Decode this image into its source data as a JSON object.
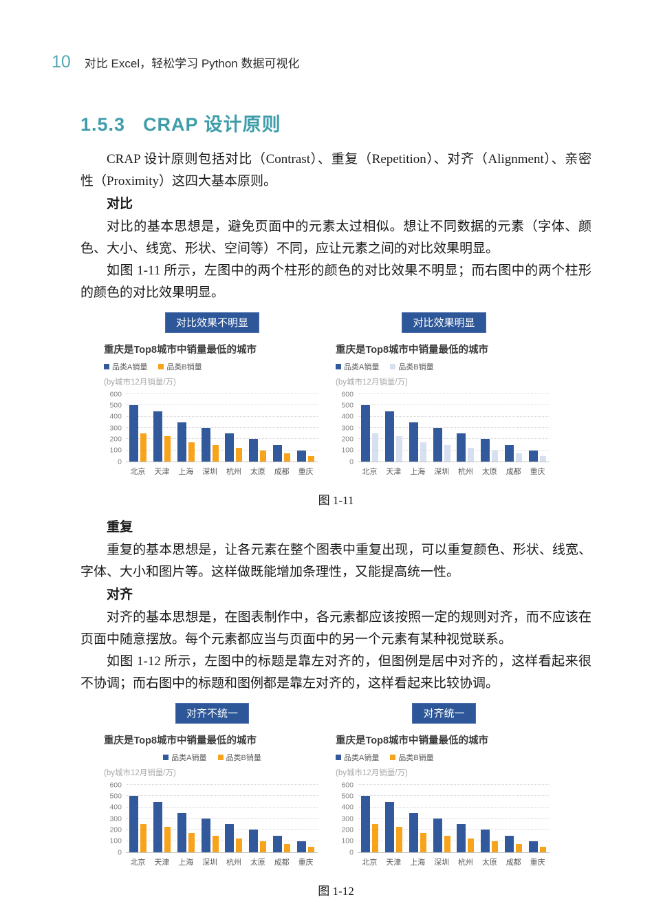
{
  "page": {
    "page_number": "10",
    "header_title": "对比 Excel，轻松学习 Python 数据可视化"
  },
  "section": {
    "number": "1.5.3",
    "title": "CRAP 设计原则"
  },
  "paragraphs": {
    "intro": "CRAP 设计原则包括对比（Contrast）、重复（Repetition）、对齐（Alignment）、亲密性（Proximity）这四大基本原则。",
    "contrast_head": "对比",
    "contrast_p1": "对比的基本思想是，避免页面中的元素太过相似。想让不同数据的元素（字体、颜色、大小、线宽、形状、空间等）不同，应让元素之间的对比效果明显。",
    "contrast_p2": "如图 1-11 所示，左图中的两个柱形的颜色的对比效果不明显；而右图中的两个柱形的颜色的对比效果明显。",
    "fig11_caption": "图 1-11",
    "repeat_head": "重复",
    "repeat_p1": "重复的基本思想是，让各元素在整个图表中重复出现，可以重复颜色、形状、线宽、字体、大小和图片等。这样做既能增加条理性，又能提高统一性。",
    "align_head": "对齐",
    "align_p1": "对齐的基本思想是，在图表制作中，各元素都应该按照一定的规则对齐，而不应该在页面中随意摆放。每个元素都应当与页面中的另一个元素有某种视觉联系。",
    "align_p2": "如图 1-12 所示，左图中的标题是靠左对齐的，但图例是居中对齐的，这样看起来很不协调；而右图中的标题和图例都是靠左对齐的，这样看起来比较协调。",
    "fig12_caption": "图 1-12"
  },
  "colors": {
    "accent_teal": "#3F9DAA",
    "badge_blue": "#2D5798",
    "bar_blue": "#31599B",
    "bar_orange": "#F7A31B",
    "bar_pale_blue": "#D6E0F1",
    "gridline": "#D6D6D6",
    "axis_label_gray": "#7F7F7F"
  },
  "chart_data": [
    {
      "type": "bar",
      "badge": "对比效果不明显",
      "title": "重庆是Top8城市中销量最低的城市",
      "subtitle": "(by城市12月销量/万)",
      "categories": [
        "北京",
        "天津",
        "上海",
        "深圳",
        "杭州",
        "太原",
        "成都",
        "重庆"
      ],
      "series": [
        {
          "name": "品类A销量",
          "color": "#31599B",
          "values": [
            500,
            450,
            350,
            300,
            250,
            200,
            150,
            100
          ]
        },
        {
          "name": "品类B销量",
          "color": "#F7A31B",
          "values": [
            250,
            225,
            175,
            150,
            125,
            100,
            75,
            50
          ]
        }
      ],
      "ylim": [
        0,
        600
      ],
      "yticks": [
        0,
        100,
        200,
        300,
        400,
        500,
        600
      ],
      "legend_align": "left",
      "grid": "dotted horizontal"
    },
    {
      "type": "bar",
      "badge": "对比效果明显",
      "title": "重庆是Top8城市中销量最低的城市",
      "subtitle": "(by城市12月销量/万)",
      "categories": [
        "北京",
        "天津",
        "上海",
        "深圳",
        "杭州",
        "太原",
        "成都",
        "重庆"
      ],
      "series": [
        {
          "name": "品类A销量",
          "color": "#31599B",
          "values": [
            500,
            450,
            350,
            300,
            250,
            200,
            150,
            100
          ]
        },
        {
          "name": "品类B销量",
          "color": "#D6E0F1",
          "values": [
            250,
            225,
            175,
            150,
            125,
            100,
            75,
            50
          ]
        }
      ],
      "ylim": [
        0,
        600
      ],
      "yticks": [
        0,
        100,
        200,
        300,
        400,
        500,
        600
      ],
      "legend_align": "left",
      "grid": "dotted horizontal"
    },
    {
      "type": "bar",
      "badge": "对齐不统一",
      "title": "重庆是Top8城市中销量最低的城市",
      "subtitle": "(by城市12月销量/万)",
      "categories": [
        "北京",
        "天津",
        "上海",
        "深圳",
        "杭州",
        "太原",
        "成都",
        "重庆"
      ],
      "series": [
        {
          "name": "品类A销量",
          "color": "#31599B",
          "values": [
            500,
            450,
            350,
            300,
            250,
            200,
            150,
            100
          ]
        },
        {
          "name": "品类B销量",
          "color": "#F7A31B",
          "values": [
            250,
            225,
            175,
            150,
            125,
            100,
            75,
            50
          ]
        }
      ],
      "ylim": [
        0,
        600
      ],
      "yticks": [
        0,
        100,
        200,
        300,
        400,
        500,
        600
      ],
      "legend_align": "center",
      "grid": "dotted horizontal"
    },
    {
      "type": "bar",
      "badge": "对齐统一",
      "title": "重庆是Top8城市中销量最低的城市",
      "subtitle": "(by城市12月销量/万)",
      "categories": [
        "北京",
        "天津",
        "上海",
        "深圳",
        "杭州",
        "太原",
        "成都",
        "重庆"
      ],
      "series": [
        {
          "name": "品类A销量",
          "color": "#31599B",
          "values": [
            500,
            450,
            350,
            300,
            250,
            200,
            150,
            100
          ]
        },
        {
          "name": "品类B销量",
          "color": "#F7A31B",
          "values": [
            250,
            225,
            175,
            150,
            125,
            100,
            75,
            50
          ]
        }
      ],
      "ylim": [
        0,
        600
      ],
      "yticks": [
        0,
        100,
        200,
        300,
        400,
        500,
        600
      ],
      "legend_align": "left",
      "grid": "dotted horizontal"
    }
  ]
}
